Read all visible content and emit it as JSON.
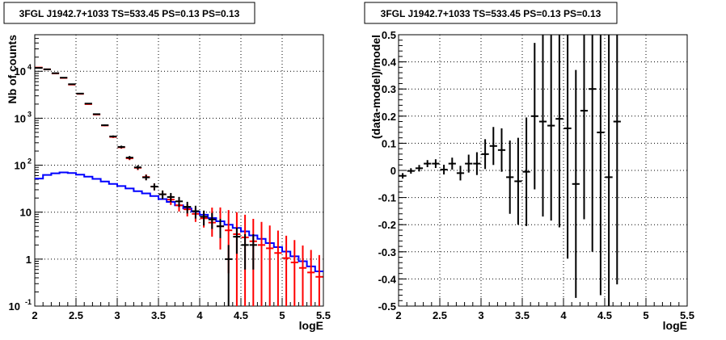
{
  "chart_data": [
    {
      "type": "line",
      "title": "3FGL J1942.7+1033 TS=533.45 PS=0.13 PS=0.13",
      "xlabel": "logE",
      "ylabel": "Nb of counts",
      "xlim": [
        2,
        5.5
      ],
      "ylim": [
        0.1,
        60000
      ],
      "y_scale": "log",
      "grid": true,
      "x_ticks": [
        "2",
        "2.5",
        "3",
        "3.5",
        "4",
        "4.5",
        "5",
        "5.5"
      ],
      "y_tick_labels": [
        {
          "value": 0.1,
          "label": "10",
          "exp": "-1"
        },
        {
          "value": 1,
          "label": "1",
          "exp": ""
        },
        {
          "value": 10,
          "label": "10",
          "exp": ""
        },
        {
          "value": 100,
          "label": "10",
          "exp": "2"
        },
        {
          "value": 1000,
          "label": "10",
          "exp": "3"
        },
        {
          "value": 10000,
          "label": "10",
          "exp": "4"
        }
      ],
      "bin_edges": [
        2.0,
        2.1,
        2.2,
        2.3,
        2.4,
        2.5,
        2.6,
        2.7,
        2.8,
        2.9,
        3.0,
        3.1,
        3.2,
        3.3,
        3.4,
        3.5,
        3.6,
        3.7,
        3.8,
        3.9,
        4.0,
        4.1,
        4.2,
        4.3,
        4.4,
        4.5,
        4.6,
        4.7,
        4.8,
        4.9,
        5.0,
        5.1,
        5.2,
        5.3,
        5.4,
        5.5
      ],
      "series": [
        {
          "style": "step",
          "color": "#0000ff",
          "values": [
            52,
            62,
            67,
            70,
            68,
            63,
            57,
            51,
            45,
            40,
            36,
            32,
            28,
            25,
            22,
            19,
            16.5,
            14,
            12,
            10.3,
            8.8,
            7.5,
            6.4,
            5.4,
            4.6,
            3.9,
            3.2,
            2.7,
            2.2,
            1.8,
            1.45,
            1.15,
            0.9,
            0.7,
            0.55
          ]
        },
        {
          "style": "errorbar",
          "color": "#ff0000",
          "x": [
            2.05,
            2.15,
            2.25,
            2.35,
            2.45,
            2.55,
            2.65,
            2.75,
            2.85,
            2.95,
            3.05,
            3.15,
            3.25,
            3.35,
            3.45,
            3.55,
            3.65,
            3.75,
            3.85,
            3.95,
            4.05,
            4.15,
            4.25,
            4.35,
            4.45,
            4.55,
            4.65,
            4.75,
            4.85,
            4.95,
            5.05,
            5.15,
            5.25,
            5.35,
            5.45
          ],
          "y": [
            12000,
            11000,
            9000,
            7200,
            5200,
            3300,
            2000,
            1200,
            700,
            400,
            240,
            140,
            88,
            56,
            35,
            24,
            18.5,
            14,
            11.5,
            9.2,
            7.4,
            6.0,
            5.0,
            4.1,
            3.4,
            2.9,
            2.4,
            2.0,
            1.7,
            1.35,
            1.05,
            0.85,
            0.65,
            0.52,
            0.42
          ],
          "err_low": [
            110,
            105,
            95,
            85,
            72,
            57,
            45,
            35,
            26,
            20,
            15.5,
            11.8,
            9.4,
            7.5,
            5.9,
            4.9,
            4.3,
            3.7,
            3.4,
            3.0,
            2.7,
            3.0,
            3.4,
            3.6,
            3.3,
            2.85,
            2.35,
            1.95,
            1.65,
            1.3,
            1.0,
            0.8,
            0.6,
            0.5,
            0.4
          ],
          "err_high": [
            110,
            105,
            95,
            85,
            72,
            57,
            45,
            35,
            26,
            20,
            15.5,
            11.8,
            9.4,
            7.5,
            5.9,
            4.9,
            4.3,
            3.7,
            3.4,
            3.0,
            3.1,
            6.5,
            7.6,
            7.0,
            6.6,
            5.9,
            4.8,
            4.2,
            3.5,
            2.7,
            2.1,
            1.7,
            1.3,
            1.05,
            0.8
          ]
        },
        {
          "style": "errorbar",
          "color": "#000000",
          "x": [
            2.05,
            2.15,
            2.25,
            2.35,
            2.45,
            2.55,
            2.65,
            2.75,
            2.85,
            2.95,
            3.05,
            3.15,
            3.25,
            3.35,
            3.45,
            3.55,
            3.65,
            3.75,
            3.85,
            3.95,
            4.05,
            4.15,
            4.25,
            4.35,
            4.45,
            4.55,
            4.65
          ],
          "y": [
            11800,
            11000,
            9100,
            7300,
            5300,
            3350,
            2050,
            1220,
            710,
            410,
            245,
            145,
            90,
            55,
            35,
            24,
            21,
            17,
            13,
            10.5,
            8,
            7,
            5,
            1,
            3,
            2,
            2
          ],
          "err_low": [
            109,
            105,
            95,
            85,
            73,
            58,
            45,
            35,
            27,
            20,
            15.7,
            12,
            9.5,
            7.4,
            5.9,
            4.9,
            4.6,
            4.1,
            3.6,
            3.2,
            2.8,
            2.6,
            2.2,
            0.9,
            1.7,
            1.4,
            1.4
          ],
          "err_high": [
            109,
            105,
            95,
            85,
            73,
            58,
            45,
            35,
            27,
            20,
            15.7,
            12,
            9.5,
            7.4,
            5.9,
            4.9,
            4.6,
            4.1,
            3.6,
            3.2,
            2.8,
            2.6,
            2.2,
            1.0,
            1.7,
            1.4,
            1.4
          ]
        }
      ]
    },
    {
      "type": "scatter",
      "title": "3FGL J1942.7+1033 TS=533.45 PS=0.13 PS=0.13",
      "xlabel": "logE",
      "ylabel": "(data-model)/model",
      "xlim": [
        2,
        5.5
      ],
      "ylim": [
        -0.5,
        0.5
      ],
      "y_scale": "linear",
      "grid": true,
      "x_ticks": [
        "2",
        "2.5",
        "3",
        "3.5",
        "4",
        "4.5",
        "5",
        "5.5"
      ],
      "y_ticks": [
        "-0.5",
        "-0.4",
        "-0.3",
        "-0.2",
        "-0.1",
        "0",
        "0.1",
        "0.2",
        "0.3",
        "0.4",
        "0.5"
      ],
      "series": [
        {
          "style": "errorbar",
          "color": "#000000",
          "x": [
            2.05,
            2.15,
            2.25,
            2.35,
            2.45,
            2.55,
            2.65,
            2.75,
            2.85,
            2.95,
            3.05,
            3.15,
            3.25,
            3.35,
            3.45,
            3.55,
            3.65,
            3.75,
            3.85,
            3.95,
            4.05,
            4.15,
            4.25,
            4.35,
            4.45,
            4.55,
            4.65
          ],
          "y": [
            -0.02,
            -0.002,
            0.008,
            0.025,
            0.025,
            0.003,
            0.025,
            -0.01,
            0.025,
            0.025,
            0.06,
            0.09,
            0.075,
            -0.025,
            -0.04,
            -0.005,
            0.2,
            0.18,
            0.165,
            0.19,
            0.155,
            -0.05,
            0.22,
            0.3,
            0.14,
            -0.025,
            0.18
          ],
          "err": [
            0.01,
            0.01,
            0.012,
            0.013,
            0.016,
            0.018,
            0.022,
            0.027,
            0.033,
            0.042,
            0.055,
            0.07,
            0.08,
            0.135,
            0.16,
            0.2,
            0.27,
            0.35,
            0.35,
            0.4,
            0.48,
            0.42,
            0.4,
            0.6,
            0.6,
            0.6,
            0.6
          ]
        }
      ]
    }
  ]
}
